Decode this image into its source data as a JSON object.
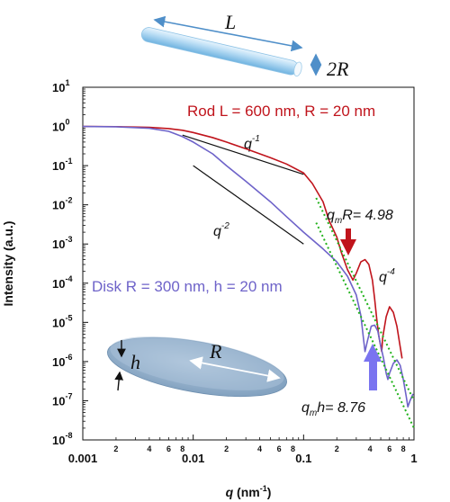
{
  "chart_data": {
    "type": "line",
    "xlabel_var": "q",
    "xlabel_unit": "(nm",
    "xlabel_exp": "-1",
    "xlabel_close": ")",
    "ylabel": "Intensity (a.u.)",
    "xscale": "log",
    "yscale": "log",
    "xlim": [
      0.001,
      1
    ],
    "ylim": [
      1e-08,
      10
    ],
    "x_major_ticks": [
      {
        "v": 0.001,
        "label": "0.001"
      },
      {
        "v": 0.01,
        "label": "0.01"
      },
      {
        "v": 0.1,
        "label": "0.1"
      },
      {
        "v": 1,
        "label": "1"
      }
    ],
    "x_minor_labels": [
      "2",
      "4",
      "6",
      "8"
    ],
    "y_ticks": [
      {
        "exp": -8,
        "base": "10",
        "sup": "-8"
      },
      {
        "exp": -7,
        "base": "10",
        "sup": "-7"
      },
      {
        "exp": -6,
        "base": "10",
        "sup": "-6"
      },
      {
        "exp": -5,
        "base": "10",
        "sup": "-5"
      },
      {
        "exp": -4,
        "base": "10",
        "sup": "-4"
      },
      {
        "exp": -3,
        "base": "10",
        "sup": "-3"
      },
      {
        "exp": -2,
        "base": "10",
        "sup": "-2"
      },
      {
        "exp": -1,
        "base": "10",
        "sup": "-1"
      },
      {
        "exp": 0,
        "base": "10",
        "sup": "0"
      },
      {
        "exp": 1,
        "base": "10",
        "sup": "1"
      }
    ],
    "series": [
      {
        "name": "Rod L = 600 nm, R = 20 nm",
        "color": "#c0141c",
        "points": [
          [
            0.001,
            1.0
          ],
          [
            0.002,
            0.99
          ],
          [
            0.004,
            0.95
          ],
          [
            0.006,
            0.88
          ],
          [
            0.008,
            0.8
          ],
          [
            0.01,
            0.7
          ],
          [
            0.015,
            0.52
          ],
          [
            0.02,
            0.4
          ],
          [
            0.03,
            0.27
          ],
          [
            0.05,
            0.16
          ],
          [
            0.07,
            0.11
          ],
          [
            0.1,
            0.065
          ],
          [
            0.12,
            0.035
          ],
          [
            0.15,
            0.012
          ],
          [
            0.17,
            0.004
          ],
          [
            0.2,
            0.0015
          ],
          [
            0.22,
            0.0006
          ],
          [
            0.25,
            0.00022
          ],
          [
            0.28,
            0.00012
          ],
          [
            0.3,
            0.00018
          ],
          [
            0.33,
            0.00035
          ],
          [
            0.36,
            0.0004
          ],
          [
            0.39,
            0.0003
          ],
          [
            0.42,
            0.00012
          ],
          [
            0.44,
            4e-05
          ],
          [
            0.46,
            1.2e-05
          ],
          [
            0.48,
            4.5e-06
          ],
          [
            0.51,
            1.8e-06
          ],
          [
            0.52,
            4e-06
          ],
          [
            0.56,
            1.4e-05
          ],
          [
            0.6,
            2.5e-05
          ],
          [
            0.65,
            1.8e-05
          ],
          [
            0.7,
            8e-06
          ],
          [
            0.74,
            3e-06
          ],
          [
            0.78,
            1.2e-06
          ]
        ]
      },
      {
        "name": "Disk R = 300 nm, h = 20 nm",
        "color": "#6e63c9",
        "points": [
          [
            0.001,
            1.0
          ],
          [
            0.002,
            0.98
          ],
          [
            0.004,
            0.9
          ],
          [
            0.006,
            0.75
          ],
          [
            0.008,
            0.55
          ],
          [
            0.01,
            0.4
          ],
          [
            0.015,
            0.2
          ],
          [
            0.02,
            0.1
          ],
          [
            0.03,
            0.04
          ],
          [
            0.05,
            0.012
          ],
          [
            0.07,
            0.005
          ],
          [
            0.1,
            0.002
          ],
          [
            0.15,
            0.00075
          ],
          [
            0.2,
            0.00035
          ],
          [
            0.25,
            0.00015
          ],
          [
            0.3,
            5e-05
          ],
          [
            0.33,
            1.5e-05
          ],
          [
            0.35,
            3.5e-06
          ],
          [
            0.36,
            1.8e-06
          ],
          [
            0.38,
            3.5e-06
          ],
          [
            0.41,
            8e-06
          ],
          [
            0.44,
            8.5e-06
          ],
          [
            0.47,
            6e-06
          ],
          [
            0.5,
            2.5e-06
          ],
          [
            0.53,
            1.2e-06
          ],
          [
            0.56,
            5e-07
          ],
          [
            0.58,
            3.5e-07
          ],
          [
            0.6,
            5e-07
          ],
          [
            0.65,
            9e-07
          ],
          [
            0.7,
            1.1e-06
          ],
          [
            0.75,
            8e-07
          ],
          [
            0.8,
            3.5e-07
          ],
          [
            0.85,
            1.3e-07
          ],
          [
            0.88,
            7e-08
          ],
          [
            0.92,
            1e-07
          ],
          [
            0.98,
            1.5e-07
          ]
        ]
      },
      {
        "name": "",
        "color": "#22b21c",
        "style": "dotted",
        "points": [
          [
            0.13,
            0.015
          ],
          [
            1.0,
            1e-07
          ]
        ]
      },
      {
        "name": "",
        "color": "#22b21c",
        "style": "dotted",
        "points": [
          [
            0.13,
            0.0035
          ],
          [
            1.0,
            2e-08
          ]
        ]
      }
    ],
    "guide_lines": [
      {
        "label_var": "q",
        "label_exp": "-1",
        "from": [
          0.008,
          0.6
        ],
        "to": [
          0.1,
          0.06
        ]
      },
      {
        "label_var": "q",
        "label_exp": "-2",
        "from": [
          0.01,
          0.1
        ],
        "to": [
          0.1,
          0.001
        ]
      }
    ],
    "annotations": {
      "rod_label": "Rod L = 600 nm, R = 20 nm",
      "disk_label": "Disk R = 300 nm, h = 20 nm",
      "qmR_var": "q",
      "qmR_sub": "m",
      "qmR_rest": "R= 4.98",
      "qmh_var": "q",
      "qmh_sub": "m",
      "qmh_rest": "h= 8.76",
      "q4_var": "q",
      "q4_exp": "-4",
      "rod_length_symbol": "L",
      "rod_radius_symbol": "2R",
      "disk_radius_symbol": "R",
      "disk_height_symbol": "h",
      "red_arrow_color": "#c0141c",
      "blue_arrow_color": "#7a74f0"
    }
  }
}
